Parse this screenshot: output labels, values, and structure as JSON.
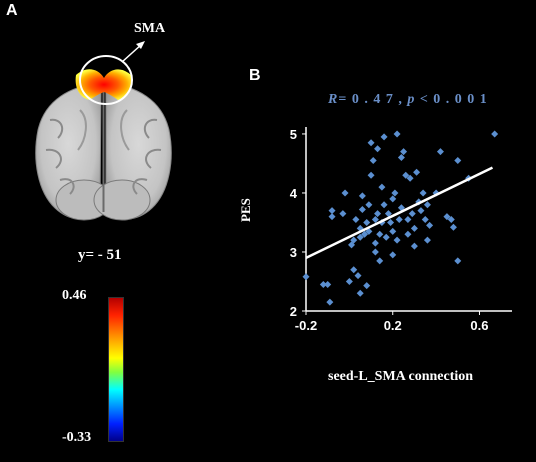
{
  "panel_a": {
    "label": "A",
    "roi_label": "SMA",
    "slice_label": "y= - 51",
    "colorbar": {
      "max": "0.46",
      "min": "-0.33"
    }
  },
  "panel_b": {
    "label": "B",
    "stat": {
      "r_symbol": "R",
      "r_text": "= 0 . 4 7 ,",
      "p_symbol": "p",
      "p_text": " < 0 . 0 0 1"
    }
  },
  "chart_data": {
    "type": "scatter",
    "title": "",
    "xlabel": "seed-L_SMA connection",
    "ylabel": "PES",
    "xlim": [
      -0.2,
      0.75
    ],
    "ylim": [
      2,
      5.05
    ],
    "xticks": [
      "-0.2",
      "0.2",
      "0.6"
    ],
    "xtick_values": [
      -0.2,
      0.2,
      0.6
    ],
    "yticks": [
      "2",
      "3",
      "4",
      "5"
    ],
    "ytick_values": [
      2,
      3,
      4,
      5
    ],
    "point_color": "#5b8fd0",
    "fit_line": {
      "x": [
        -0.2,
        0.66
      ],
      "y": [
        2.9,
        4.43
      ],
      "color": "#ffffff"
    },
    "points": [
      [
        -0.2,
        2.58
      ],
      [
        -0.12,
        2.45
      ],
      [
        -0.1,
        2.45
      ],
      [
        -0.09,
        2.15
      ],
      [
        -0.08,
        3.6
      ],
      [
        -0.08,
        3.7
      ],
      [
        -0.03,
        3.65
      ],
      [
        -0.02,
        4.0
      ],
      [
        0.0,
        2.5
      ],
      [
        0.01,
        3.12
      ],
      [
        0.02,
        3.2
      ],
      [
        0.02,
        2.7
      ],
      [
        0.03,
        3.55
      ],
      [
        0.04,
        2.6
      ],
      [
        0.05,
        3.4
      ],
      [
        0.05,
        3.25
      ],
      [
        0.05,
        2.3
      ],
      [
        0.06,
        3.72
      ],
      [
        0.06,
        3.95
      ],
      [
        0.07,
        3.3
      ],
      [
        0.08,
        3.5
      ],
      [
        0.08,
        2.43
      ],
      [
        0.09,
        3.35
      ],
      [
        0.09,
        3.8
      ],
      [
        0.1,
        4.3
      ],
      [
        0.1,
        4.85
      ],
      [
        0.11,
        4.55
      ],
      [
        0.12,
        3.55
      ],
      [
        0.12,
        3.0
      ],
      [
        0.12,
        3.15
      ],
      [
        0.13,
        4.75
      ],
      [
        0.13,
        3.65
      ],
      [
        0.14,
        3.3
      ],
      [
        0.14,
        2.85
      ],
      [
        0.15,
        4.1
      ],
      [
        0.15,
        3.5
      ],
      [
        0.16,
        3.8
      ],
      [
        0.16,
        4.95
      ],
      [
        0.17,
        3.25
      ],
      [
        0.18,
        3.65
      ],
      [
        0.19,
        3.5
      ],
      [
        0.2,
        3.9
      ],
      [
        0.2,
        3.35
      ],
      [
        0.2,
        2.95
      ],
      [
        0.21,
        4.0
      ],
      [
        0.22,
        5.0
      ],
      [
        0.22,
        3.2
      ],
      [
        0.23,
        3.55
      ],
      [
        0.24,
        4.6
      ],
      [
        0.24,
        3.75
      ],
      [
        0.25,
        4.7
      ],
      [
        0.26,
        4.3
      ],
      [
        0.27,
        3.3
      ],
      [
        0.27,
        3.55
      ],
      [
        0.28,
        4.25
      ],
      [
        0.29,
        3.65
      ],
      [
        0.3,
        3.4
      ],
      [
        0.3,
        3.1
      ],
      [
        0.31,
        4.35
      ],
      [
        0.32,
        3.85
      ],
      [
        0.33,
        3.7
      ],
      [
        0.34,
        4.0
      ],
      [
        0.35,
        3.55
      ],
      [
        0.36,
        3.8
      ],
      [
        0.36,
        3.2
      ],
      [
        0.37,
        3.45
      ],
      [
        0.4,
        4.0
      ],
      [
        0.42,
        4.7
      ],
      [
        0.45,
        3.6
      ],
      [
        0.47,
        3.55
      ],
      [
        0.48,
        3.42
      ],
      [
        0.5,
        2.85
      ],
      [
        0.5,
        4.55
      ],
      [
        0.55,
        4.25
      ],
      [
        0.67,
        5.0
      ]
    ]
  }
}
